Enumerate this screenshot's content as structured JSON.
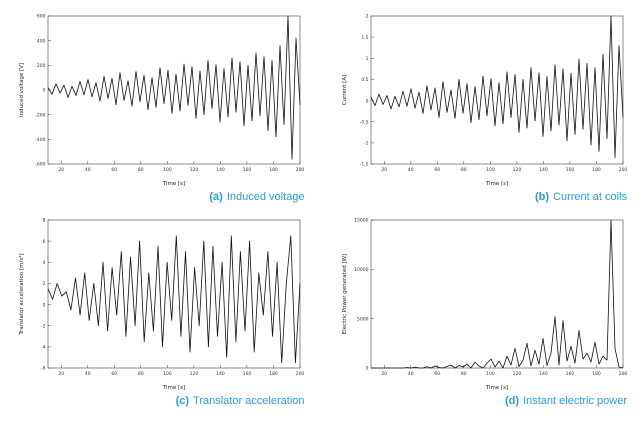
{
  "colors": {
    "caption_blue": "#2b9cd8",
    "line_black": "#111111",
    "axis_gray": "#444444"
  },
  "captions": [
    {
      "label": "(a)",
      "text": "Induced voltage"
    },
    {
      "label": "(b)",
      "text": "Current at coils"
    },
    {
      "label": "(c)",
      "text": "Translator acceleration"
    },
    {
      "label": "(d)",
      "text": "Instant electric power"
    }
  ],
  "chart_data": [
    {
      "type": "line",
      "title": "",
      "xlabel": "Time [s]",
      "ylabel": "Induced voltage [V]",
      "x_range": [
        10,
        200
      ],
      "ylim": [
        -600,
        600
      ],
      "xticks": [
        20,
        40,
        60,
        80,
        100,
        120,
        140,
        160,
        180,
        200
      ],
      "yticks": [
        600,
        400,
        200,
        0,
        -200,
        -400,
        -600
      ],
      "grid": false,
      "legend": "none",
      "values": [
        20,
        -35,
        50,
        -25,
        40,
        -60,
        30,
        -45,
        70,
        -40,
        85,
        -55,
        60,
        -90,
        110,
        -70,
        95,
        -120,
        140,
        -85,
        75,
        -130,
        150,
        -95,
        120,
        -160,
        100,
        -140,
        180,
        -110,
        160,
        -190,
        130,
        -170,
        210,
        -125,
        190,
        -230,
        155,
        -200,
        240,
        -150,
        205,
        -260,
        175,
        -220,
        260,
        -180,
        230,
        -290,
        200,
        -250,
        300,
        -210,
        270,
        -330,
        240,
        -380,
        360,
        -280,
        600,
        -560,
        420,
        -120
      ]
    },
    {
      "type": "line",
      "title": "",
      "xlabel": "Time [s]",
      "ylabel": "Current [A]",
      "x_range": [
        10,
        200
      ],
      "ylim": [
        -1.5,
        2
      ],
      "xticks": [
        20,
        40,
        60,
        80,
        100,
        120,
        140,
        160,
        180,
        200
      ],
      "yticks": [
        2,
        1.5,
        1,
        0.5,
        0,
        -0.5,
        -1,
        -1.5
      ],
      "grid": false,
      "legend": "none",
      "values": [
        0.08,
        -0.12,
        0.15,
        -0.09,
        0.12,
        -0.2,
        0.1,
        -0.15,
        0.22,
        -0.13,
        0.28,
        -0.18,
        0.2,
        -0.3,
        0.35,
        -0.22,
        0.3,
        -0.4,
        0.45,
        -0.28,
        0.25,
        -0.42,
        0.5,
        -0.3,
        0.4,
        -0.52,
        0.33,
        -0.45,
        0.58,
        -0.36,
        0.52,
        -0.6,
        0.42,
        -0.55,
        0.68,
        -0.4,
        0.62,
        -0.75,
        0.5,
        -0.65,
        0.78,
        -0.48,
        0.66,
        -0.85,
        0.57,
        -0.72,
        0.85,
        -0.58,
        0.75,
        -0.95,
        0.65,
        -0.8,
        0.98,
        -0.68,
        0.88,
        -1.05,
        0.78,
        -1.2,
        1.1,
        -0.9,
        2.0,
        -1.35,
        1.3,
        -0.4
      ]
    },
    {
      "type": "line",
      "title": "",
      "xlabel": "Time [s]",
      "ylabel": "Translator acceleration [m/s²]",
      "x_range": [
        10,
        200
      ],
      "ylim": [
        -6,
        8
      ],
      "xticks": [
        20,
        40,
        60,
        80,
        100,
        120,
        140,
        160,
        180,
        200
      ],
      "yticks": [
        8,
        6,
        4,
        2,
        0,
        -2,
        -4,
        -6
      ],
      "grid": false,
      "legend": "none",
      "values": [
        1.5,
        0.5,
        2,
        0.8,
        1.2,
        -0.5,
        2.5,
        -1,
        3,
        -1.5,
        2,
        -2,
        4,
        -2.5,
        3.5,
        -1,
        5,
        -3,
        4.5,
        -2,
        6,
        -3.5,
        3,
        -2.5,
        5.5,
        -4,
        4,
        -1.5,
        6.5,
        -3,
        5,
        -4.5,
        3.5,
        -2,
        6,
        -4,
        5.5,
        -3,
        4,
        -5,
        6.5,
        -3.5,
        5,
        -2.5,
        6,
        -4.5,
        3,
        -1,
        5,
        -3,
        4,
        -5.5,
        2,
        6.5,
        -5.5,
        2
      ]
    },
    {
      "type": "line",
      "title": "",
      "xlabel": "Time [s]",
      "ylabel": "Electric Power generated [W]",
      "x_range": [
        10,
        200
      ],
      "ylim": [
        0,
        15000
      ],
      "xticks": [
        20,
        40,
        60,
        80,
        100,
        120,
        140,
        160,
        180,
        200
      ],
      "yticks": [
        15000,
        10000,
        5000,
        0
      ],
      "grid": false,
      "legend": "none",
      "values": [
        0,
        0,
        0,
        0,
        0,
        0,
        0,
        0,
        0,
        50,
        0,
        80,
        0,
        0,
        120,
        0,
        200,
        60,
        0,
        150,
        300,
        0,
        250,
        100,
        400,
        0,
        600,
        200,
        0,
        500,
        900,
        100,
        700,
        0,
        1200,
        300,
        2000,
        150,
        800,
        2500,
        200,
        1800,
        400,
        3000,
        250,
        1500,
        5200,
        300,
        4800,
        700,
        2200,
        500,
        3800,
        900,
        1500,
        600,
        2600,
        400,
        1200,
        800,
        15000,
        2000,
        100,
        0
      ]
    }
  ]
}
